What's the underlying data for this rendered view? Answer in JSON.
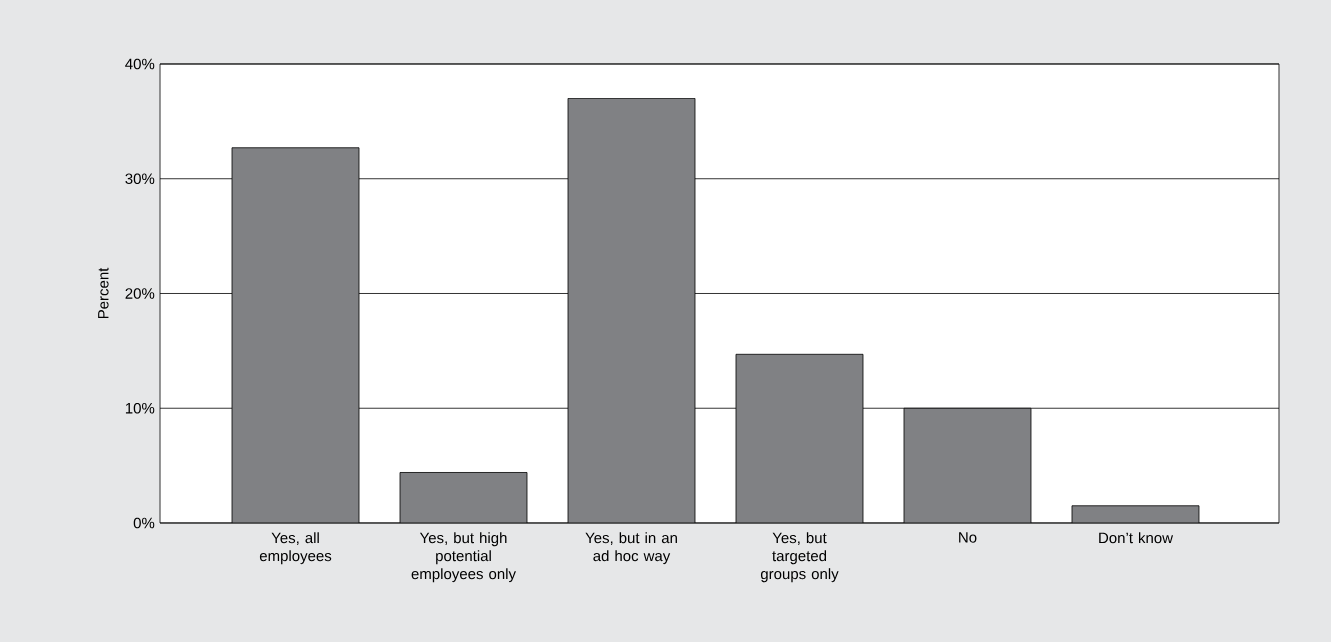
{
  "chart_data": {
    "type": "bar",
    "ylabel": "Percent",
    "categories": [
      "Yes, all employees",
      "Yes, but high potential employees only",
      "Yes, but in an ad hoc way",
      "Yes, but targeted groups only",
      "No",
      "Don’t know"
    ],
    "values": [
      32.7,
      4.4,
      37.0,
      14.7,
      10.0,
      1.5
    ],
    "color": "#808184",
    "ylim": [
      0,
      40
    ],
    "yticks": [
      {
        "value": 0,
        "label": "0%"
      },
      {
        "value": 10,
        "label": "10%"
      },
      {
        "value": 20,
        "label": "20%"
      },
      {
        "value": 30,
        "label": "30%"
      },
      {
        "value": 40,
        "label": "40%"
      }
    ],
    "grid": "y"
  }
}
